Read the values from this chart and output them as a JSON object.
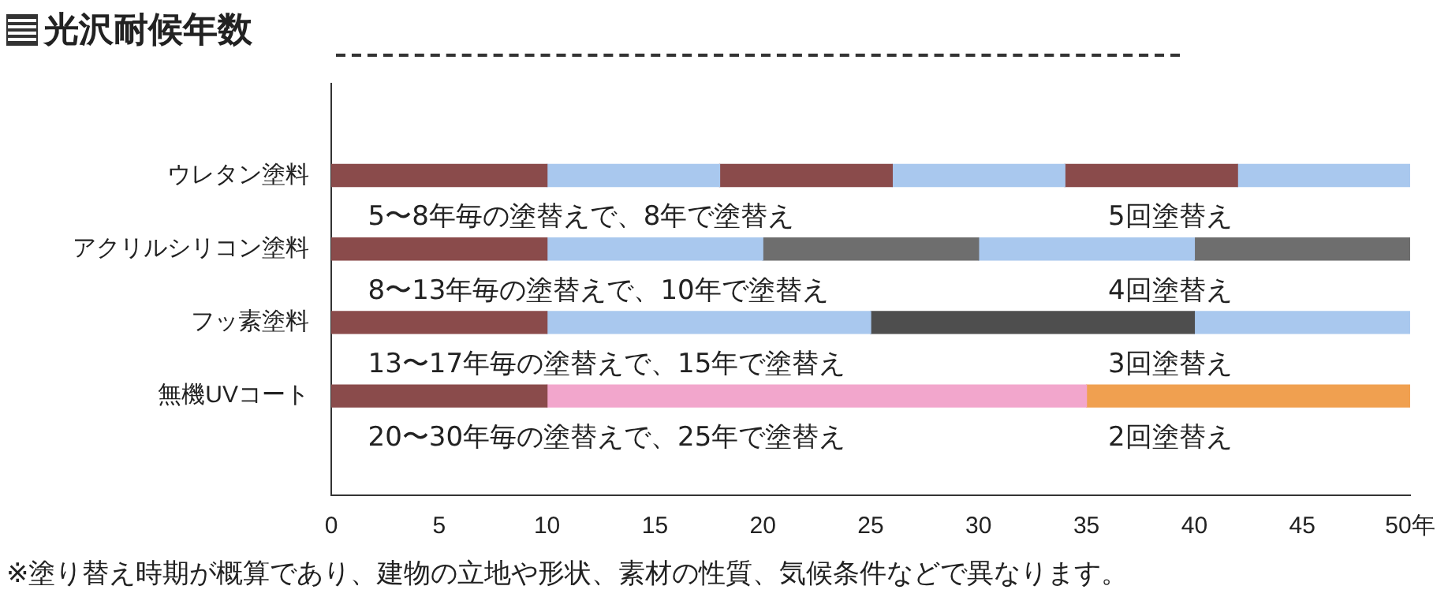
{
  "chart_data": {
    "type": "bar",
    "orientation": "horizontal",
    "stacked": true,
    "title": "光沢耐候年数",
    "categories": [
      "ウレタン塗料",
      "アクリルシリコン塗料",
      "フッ素塗料",
      "無機UVコート"
    ],
    "series": [
      {
        "color": "#8a4b4b",
        "values": [
          10,
          10,
          10,
          10
        ]
      },
      {
        "colors": [
          "#a9c8ee",
          "#a9c8ee",
          "#a9c8ee",
          "#f2a6cc"
        ],
        "values": [
          8,
          10,
          15,
          25
        ]
      },
      {
        "colors": [
          "#8a4b4b",
          "#6e6e6e",
          "#4e4e4e",
          "#f0a050"
        ],
        "values": [
          8,
          10,
          15,
          15
        ]
      },
      {
        "colors": [
          "#a9c8ee",
          "#a9c8ee",
          "#a9c8ee",
          null
        ],
        "values": [
          8,
          10,
          10,
          null
        ]
      },
      {
        "colors": [
          "#8a4b4b",
          "#6e6e6e",
          null,
          null
        ],
        "values": [
          8,
          10,
          null,
          null
        ]
      },
      {
        "colors": [
          "#a9c8ee",
          null,
          null,
          null
        ],
        "values": [
          8,
          null,
          null,
          null
        ]
      }
    ],
    "xlim": [
      0,
      50
    ],
    "xticks": [
      0,
      5,
      10,
      15,
      20,
      25,
      30,
      35,
      40,
      45,
      {
        "value": 50,
        "label": "50年"
      }
    ],
    "grid": false,
    "legend": false,
    "annotations": [
      "5〜8年毎の塗替えで、8年で塗替え",
      "5回塗替え",
      "8〜13年毎の塗替えで、10年で塗替え",
      "4回塗替え",
      "13〜17年毎の塗替えで、15年で塗替え",
      "3回塗替え",
      "20〜30年毎の塗替えで、25年で塗替え",
      "2回塗替え",
      "※塗り替え時期が概算であり、建物の立地や形状、素材の性質、気候条件などで異なります。"
    ]
  }
}
